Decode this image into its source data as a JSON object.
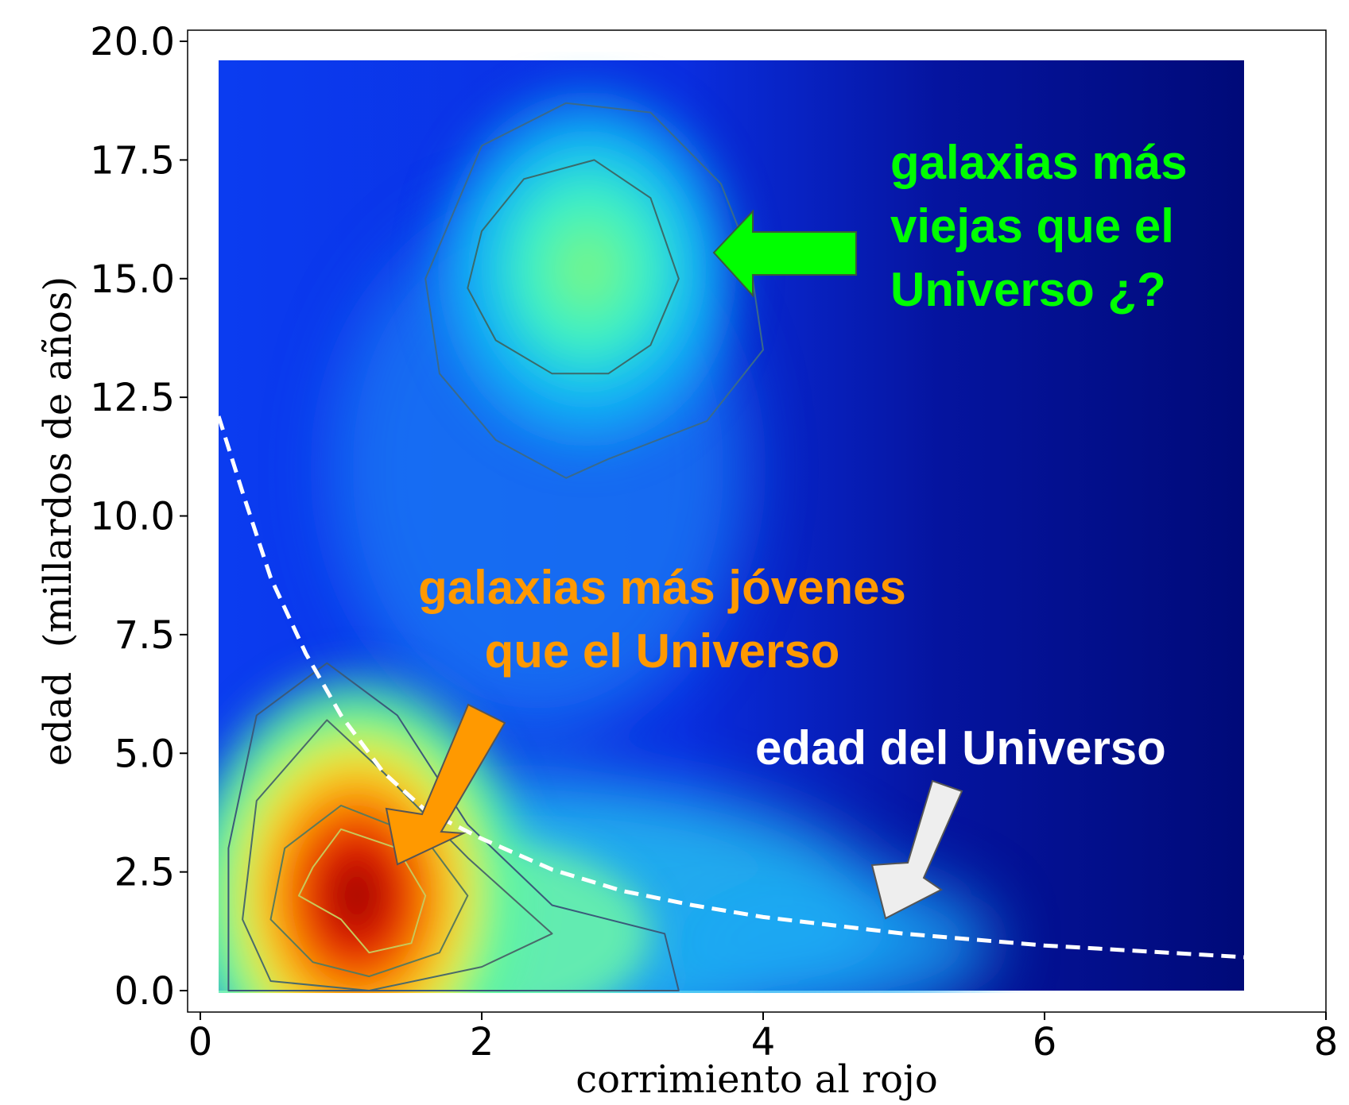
{
  "chart_data": {
    "type": "heatmap",
    "title": "",
    "xlabel": "corrimiento al rojo",
    "ylabel": "edad  (millardos de años)",
    "xlim": [
      -0.1,
      8.0
    ],
    "ylim": [
      -0.5,
      20.2
    ],
    "x_ticks": [
      0,
      2,
      4,
      6,
      8
    ],
    "x_tick_labels": [
      "0",
      "2",
      "4",
      "6",
      "8"
    ],
    "y_ticks": [
      0.0,
      2.5,
      5.0,
      7.5,
      10.0,
      12.5,
      15.0,
      17.5,
      20.0
    ],
    "y_tick_labels": [
      "0.0",
      "2.5",
      "5.0",
      "7.5",
      "10.0",
      "12.5",
      "15.0",
      "17.5",
      "20.0"
    ],
    "grid": false,
    "legend": "none",
    "heatmap_extent": {
      "x": [
        0.13,
        7.45
      ],
      "y": [
        0.0,
        19.6
      ]
    },
    "colormap": "jet",
    "density_peaks": [
      {
        "x": 1.0,
        "y": 2.0,
        "relative_density": 1.0
      },
      {
        "x": 2.75,
        "y": 15.2,
        "relative_density": 0.42
      }
    ],
    "universe_age_curve": {
      "style": "dashed",
      "color": "#ffffff",
      "x": [
        0.13,
        0.3,
        0.5,
        0.75,
        1.0,
        1.3,
        1.6,
        2.0,
        2.5,
        3.0,
        3.5,
        4.0,
        5.0,
        6.0,
        7.45
      ],
      "y": [
        12.1,
        10.5,
        8.7,
        7.1,
        5.8,
        4.6,
        3.8,
        3.2,
        2.55,
        2.1,
        1.8,
        1.55,
        1.2,
        0.95,
        0.7
      ]
    },
    "annotations": [
      {
        "text_lines": [
          "galaxias más",
          "viejas que el",
          "Universo ¿?"
        ],
        "color": "#00ff00"
      },
      {
        "text_lines": [
          "galaxias más jóvenes",
          "que el Universo"
        ],
        "color": "#ff9900"
      },
      {
        "text_lines": [
          "edad del Universo"
        ],
        "color": "#ffffff"
      }
    ],
    "arrow_colors": {
      "green": "#00ff00",
      "orange": "#ff9900",
      "white": "#eeeeee"
    }
  }
}
